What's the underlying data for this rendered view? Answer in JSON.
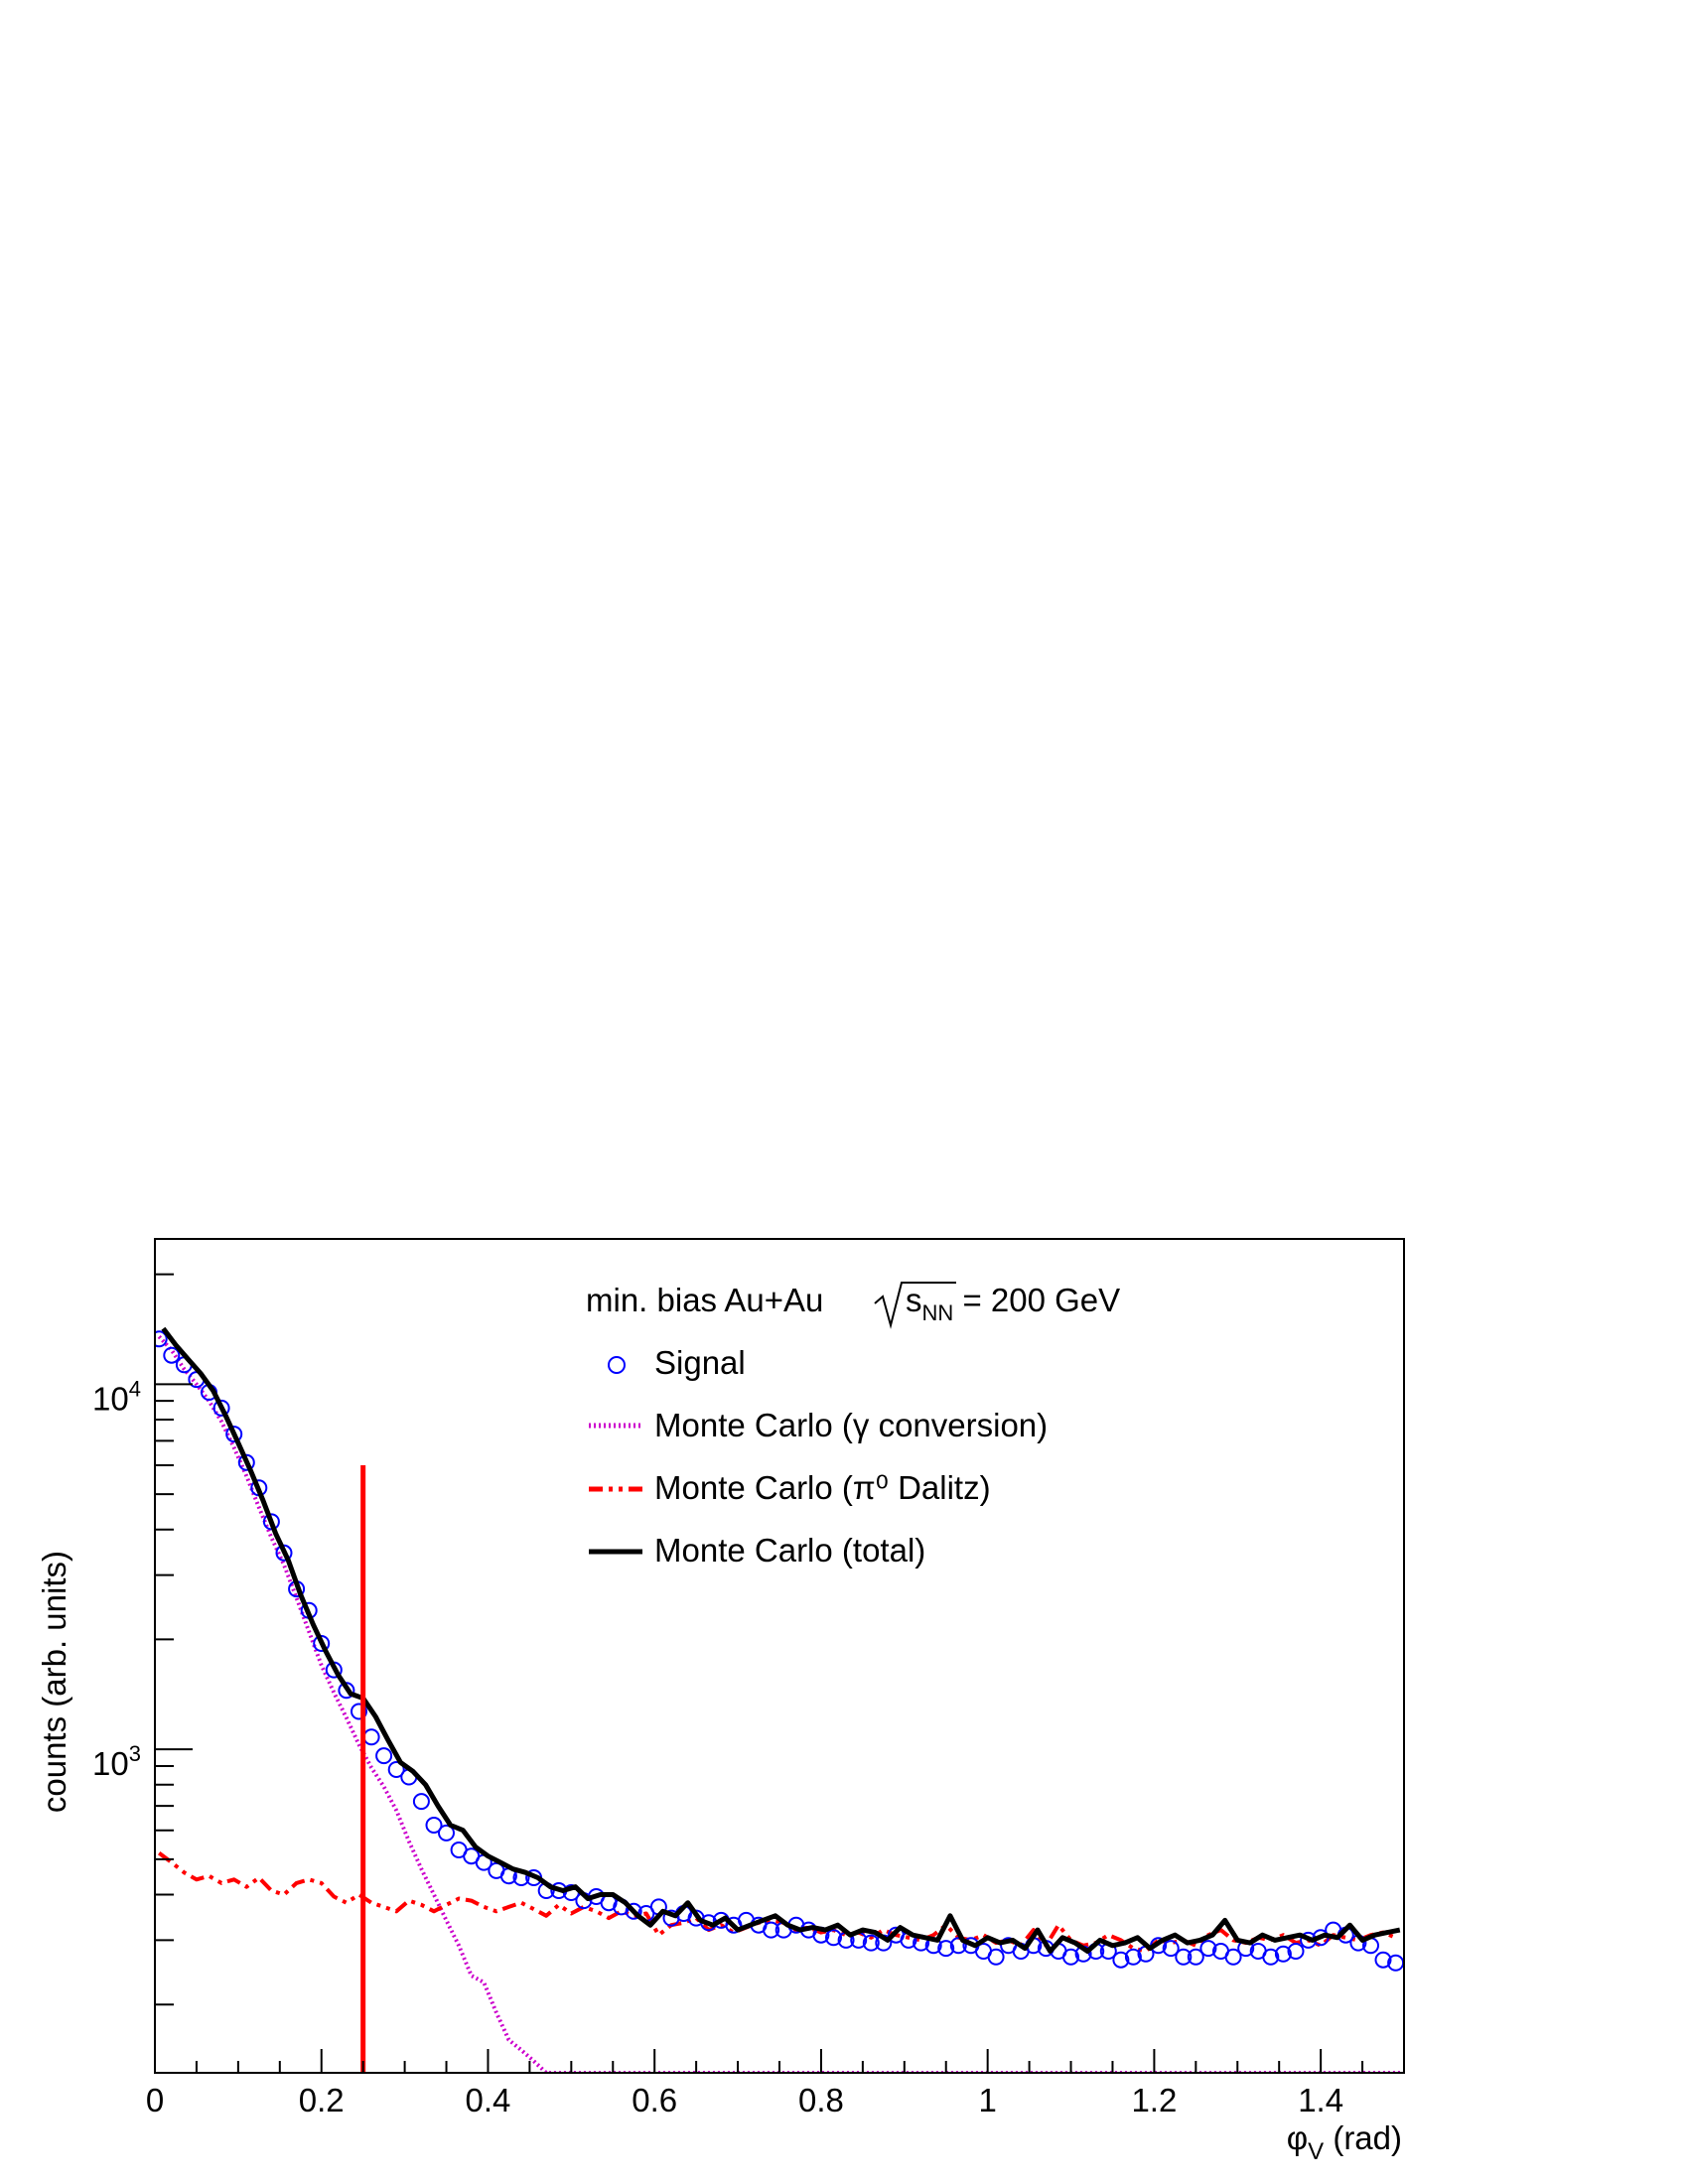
{
  "chart_data": {
    "type": "scatter",
    "xlabel": "φ",
    "xlabel_sub": "V",
    "xlabel_unit": " (rad)",
    "ylabel": "counts (arb. units)",
    "xlim": [
      0,
      1.5
    ],
    "ylim": [
      130,
      25000
    ],
    "yscale": "log",
    "x_ticks": [
      "0",
      "0.2",
      "0.4",
      "0.6",
      "0.8",
      "1",
      "1.2",
      "1.4"
    ],
    "y_ticks": [
      {
        "base": "10",
        "exp": "3"
      },
      {
        "base": "10",
        "exp": "4"
      }
    ],
    "grid": false,
    "legend_position": "top-center",
    "legend": {
      "title_prefix": "min. bias Au+Au ",
      "title_sqrt": "s",
      "title_sub": "NN",
      "title_suffix": " = 200 GeV",
      "entries": [
        "Signal",
        "Monte Carlo (γ conversion)",
        "Monte Carlo (π⁰ Dalitz)",
        "Monte Carlo (total)"
      ]
    },
    "cut_line": {
      "x": 0.25,
      "y_top": 6000,
      "color": "#ff0000"
    },
    "colors": {
      "signal": "#0000ff",
      "conversion": "#cc00cc",
      "dalitz": "#ff0000",
      "total": "#000000"
    },
    "series": [
      {
        "name": "Signal",
        "x": [
          0.005,
          0.02,
          0.035,
          0.05,
          0.065,
          0.08,
          0.095,
          0.11,
          0.125,
          0.14,
          0.155,
          0.17,
          0.185,
          0.2,
          0.215,
          0.23,
          0.245,
          0.26,
          0.275,
          0.29,
          0.305,
          0.32,
          0.335,
          0.35,
          0.365,
          0.38,
          0.395,
          0.41,
          0.425,
          0.44,
          0.455,
          0.47,
          0.485,
          0.5,
          0.515,
          0.53,
          0.545,
          0.56,
          0.575,
          0.59,
          0.605,
          0.62,
          0.635,
          0.65,
          0.665,
          0.68,
          0.695,
          0.71,
          0.725,
          0.74,
          0.755,
          0.77,
          0.785,
          0.8,
          0.815,
          0.83,
          0.845,
          0.86,
          0.875,
          0.89,
          0.905,
          0.92,
          0.935,
          0.95,
          0.965,
          0.98,
          0.995,
          1.01,
          1.025,
          1.04,
          1.055,
          1.07,
          1.085,
          1.1,
          1.115,
          1.13,
          1.145,
          1.16,
          1.175,
          1.19,
          1.205,
          1.22,
          1.235,
          1.25,
          1.265,
          1.28,
          1.295,
          1.31,
          1.325,
          1.34,
          1.355,
          1.37,
          1.385,
          1.4,
          1.415,
          1.43,
          1.445,
          1.46,
          1.475,
          1.49
        ],
        "values": [
          13300,
          12000,
          11300,
          10300,
          9500,
          8600,
          7300,
          6100,
          5200,
          4200,
          3450,
          2750,
          2400,
          1950,
          1650,
          1450,
          1270,
          1080,
          960,
          880,
          840,
          720,
          620,
          590,
          530,
          510,
          490,
          465,
          450,
          445,
          445,
          410,
          410,
          405,
          385,
          395,
          380,
          370,
          360,
          355,
          370,
          345,
          355,
          345,
          335,
          340,
          330,
          340,
          330,
          320,
          320,
          330,
          320,
          310,
          305,
          300,
          300,
          295,
          295,
          310,
          300,
          295,
          290,
          285,
          290,
          290,
          280,
          270,
          290,
          280,
          290,
          285,
          280,
          270,
          275,
          280,
          280,
          265,
          270,
          275,
          290,
          285,
          270,
          270,
          285,
          280,
          270,
          285,
          280,
          270,
          275,
          280,
          300,
          305,
          320,
          310,
          295,
          290,
          265,
          260
        ]
      },
      {
        "name": "Monte Carlo (γ conversion)",
        "x": [
          0.005,
          0.02,
          0.035,
          0.05,
          0.065,
          0.08,
          0.095,
          0.11,
          0.125,
          0.14,
          0.155,
          0.17,
          0.185,
          0.2,
          0.215,
          0.23,
          0.245,
          0.26,
          0.275,
          0.29,
          0.305,
          0.32,
          0.335,
          0.35,
          0.365,
          0.38,
          0.395,
          0.41,
          0.425,
          0.44,
          0.455,
          0.47,
          0.485,
          1.5
        ],
        "values": [
          13500,
          12400,
          11000,
          10000,
          9000,
          7900,
          6700,
          5600,
          4600,
          3800,
          3200,
          2600,
          2100,
          1700,
          1430,
          1220,
          1030,
          890,
          790,
          680,
          560,
          470,
          400,
          340,
          290,
          240,
          230,
          190,
          160,
          150,
          140,
          125,
          125,
          125
        ]
      },
      {
        "name": "Monte Carlo (π⁰ Dalitz)",
        "x": [
          0.005,
          0.02,
          0.035,
          0.05,
          0.065,
          0.08,
          0.095,
          0.11,
          0.125,
          0.14,
          0.155,
          0.17,
          0.185,
          0.2,
          0.215,
          0.23,
          0.245,
          0.26,
          0.275,
          0.29,
          0.305,
          0.32,
          0.335,
          0.35,
          0.365,
          0.38,
          0.395,
          0.41,
          0.425,
          0.44,
          0.455,
          0.47,
          0.485,
          0.5,
          0.515,
          0.53,
          0.545,
          0.56,
          0.575,
          0.59,
          0.605,
          0.62,
          0.635,
          0.65,
          0.665,
          0.68,
          0.695,
          0.71,
          0.725,
          0.74,
          0.755,
          0.77,
          0.785,
          0.8,
          0.815,
          0.83,
          0.845,
          0.86,
          0.875,
          0.89,
          0.905,
          0.92,
          0.935,
          0.95,
          0.965,
          0.98,
          0.995,
          1.01,
          1.025,
          1.04,
          1.055,
          1.07,
          1.085,
          1.1,
          1.115,
          1.13,
          1.145,
          1.16,
          1.175,
          1.19,
          1.205,
          1.22,
          1.235,
          1.25,
          1.265,
          1.28,
          1.295,
          1.31,
          1.325,
          1.34,
          1.355,
          1.37,
          1.385,
          1.4,
          1.415,
          1.43,
          1.445,
          1.46,
          1.475,
          1.49
        ],
        "values": [
          520,
          490,
          460,
          440,
          450,
          430,
          440,
          420,
          445,
          410,
          400,
          430,
          440,
          430,
          395,
          380,
          400,
          380,
          370,
          360,
          385,
          375,
          360,
          375,
          390,
          385,
          370,
          360,
          370,
          380,
          365,
          350,
          375,
          355,
          370,
          360,
          345,
          360,
          350,
          355,
          310,
          330,
          335,
          345,
          320,
          330,
          315,
          325,
          335,
          340,
          335,
          320,
          325,
          315,
          320,
          310,
          315,
          305,
          320,
          310,
          305,
          300,
          310,
          330,
          305,
          300,
          310,
          295,
          300,
          290,
          320,
          290,
          330,
          300,
          290,
          295,
          310,
          300,
          285,
          280,
          300,
          295,
          300,
          290,
          310,
          320,
          300,
          295,
          305,
          300,
          310,
          295,
          300,
          290,
          310,
          305,
          300,
          310,
          315,
          305
        ]
      },
      {
        "name": "Monte Carlo (total)",
        "x": [
          0.01,
          0.025,
          0.04,
          0.055,
          0.07,
          0.085,
          0.1,
          0.115,
          0.13,
          0.145,
          0.16,
          0.175,
          0.19,
          0.205,
          0.22,
          0.235,
          0.25,
          0.265,
          0.28,
          0.295,
          0.31,
          0.325,
          0.34,
          0.355,
          0.37,
          0.385,
          0.4,
          0.415,
          0.43,
          0.445,
          0.46,
          0.475,
          0.49,
          0.505,
          0.52,
          0.535,
          0.55,
          0.565,
          0.58,
          0.595,
          0.61,
          0.625,
          0.64,
          0.655,
          0.67,
          0.685,
          0.7,
          0.715,
          0.73,
          0.745,
          0.76,
          0.775,
          0.79,
          0.805,
          0.82,
          0.835,
          0.85,
          0.865,
          0.88,
          0.895,
          0.91,
          0.925,
          0.94,
          0.955,
          0.97,
          0.985,
          1.0,
          1.015,
          1.03,
          1.045,
          1.06,
          1.075,
          1.09,
          1.105,
          1.12,
          1.135,
          1.15,
          1.165,
          1.18,
          1.195,
          1.21,
          1.225,
          1.24,
          1.255,
          1.27,
          1.285,
          1.3,
          1.315,
          1.33,
          1.345,
          1.36,
          1.375,
          1.39,
          1.405,
          1.42,
          1.435,
          1.45,
          1.465,
          1.48,
          1.495
        ],
        "values": [
          14200,
          12800,
          11700,
          10700,
          9600,
          8200,
          6900,
          5800,
          4800,
          3900,
          3300,
          2650,
          2200,
          1860,
          1600,
          1420,
          1380,
          1230,
          1060,
          920,
          870,
          800,
          700,
          620,
          600,
          540,
          510,
          490,
          470,
          460,
          445,
          420,
          410,
          420,
          390,
          400,
          400,
          380,
          350,
          330,
          360,
          350,
          380,
          340,
          330,
          345,
          320,
          330,
          340,
          350,
          330,
          320,
          325,
          320,
          330,
          310,
          320,
          315,
          300,
          325,
          310,
          305,
          300,
          350,
          300,
          290,
          305,
          295,
          300,
          285,
          320,
          280,
          305,
          295,
          280,
          300,
          290,
          295,
          305,
          285,
          300,
          310,
          295,
          300,
          310,
          340,
          300,
          295,
          310,
          300,
          305,
          310,
          300,
          310,
          305,
          330,
          300,
          310,
          315,
          320
        ]
      }
    ]
  }
}
